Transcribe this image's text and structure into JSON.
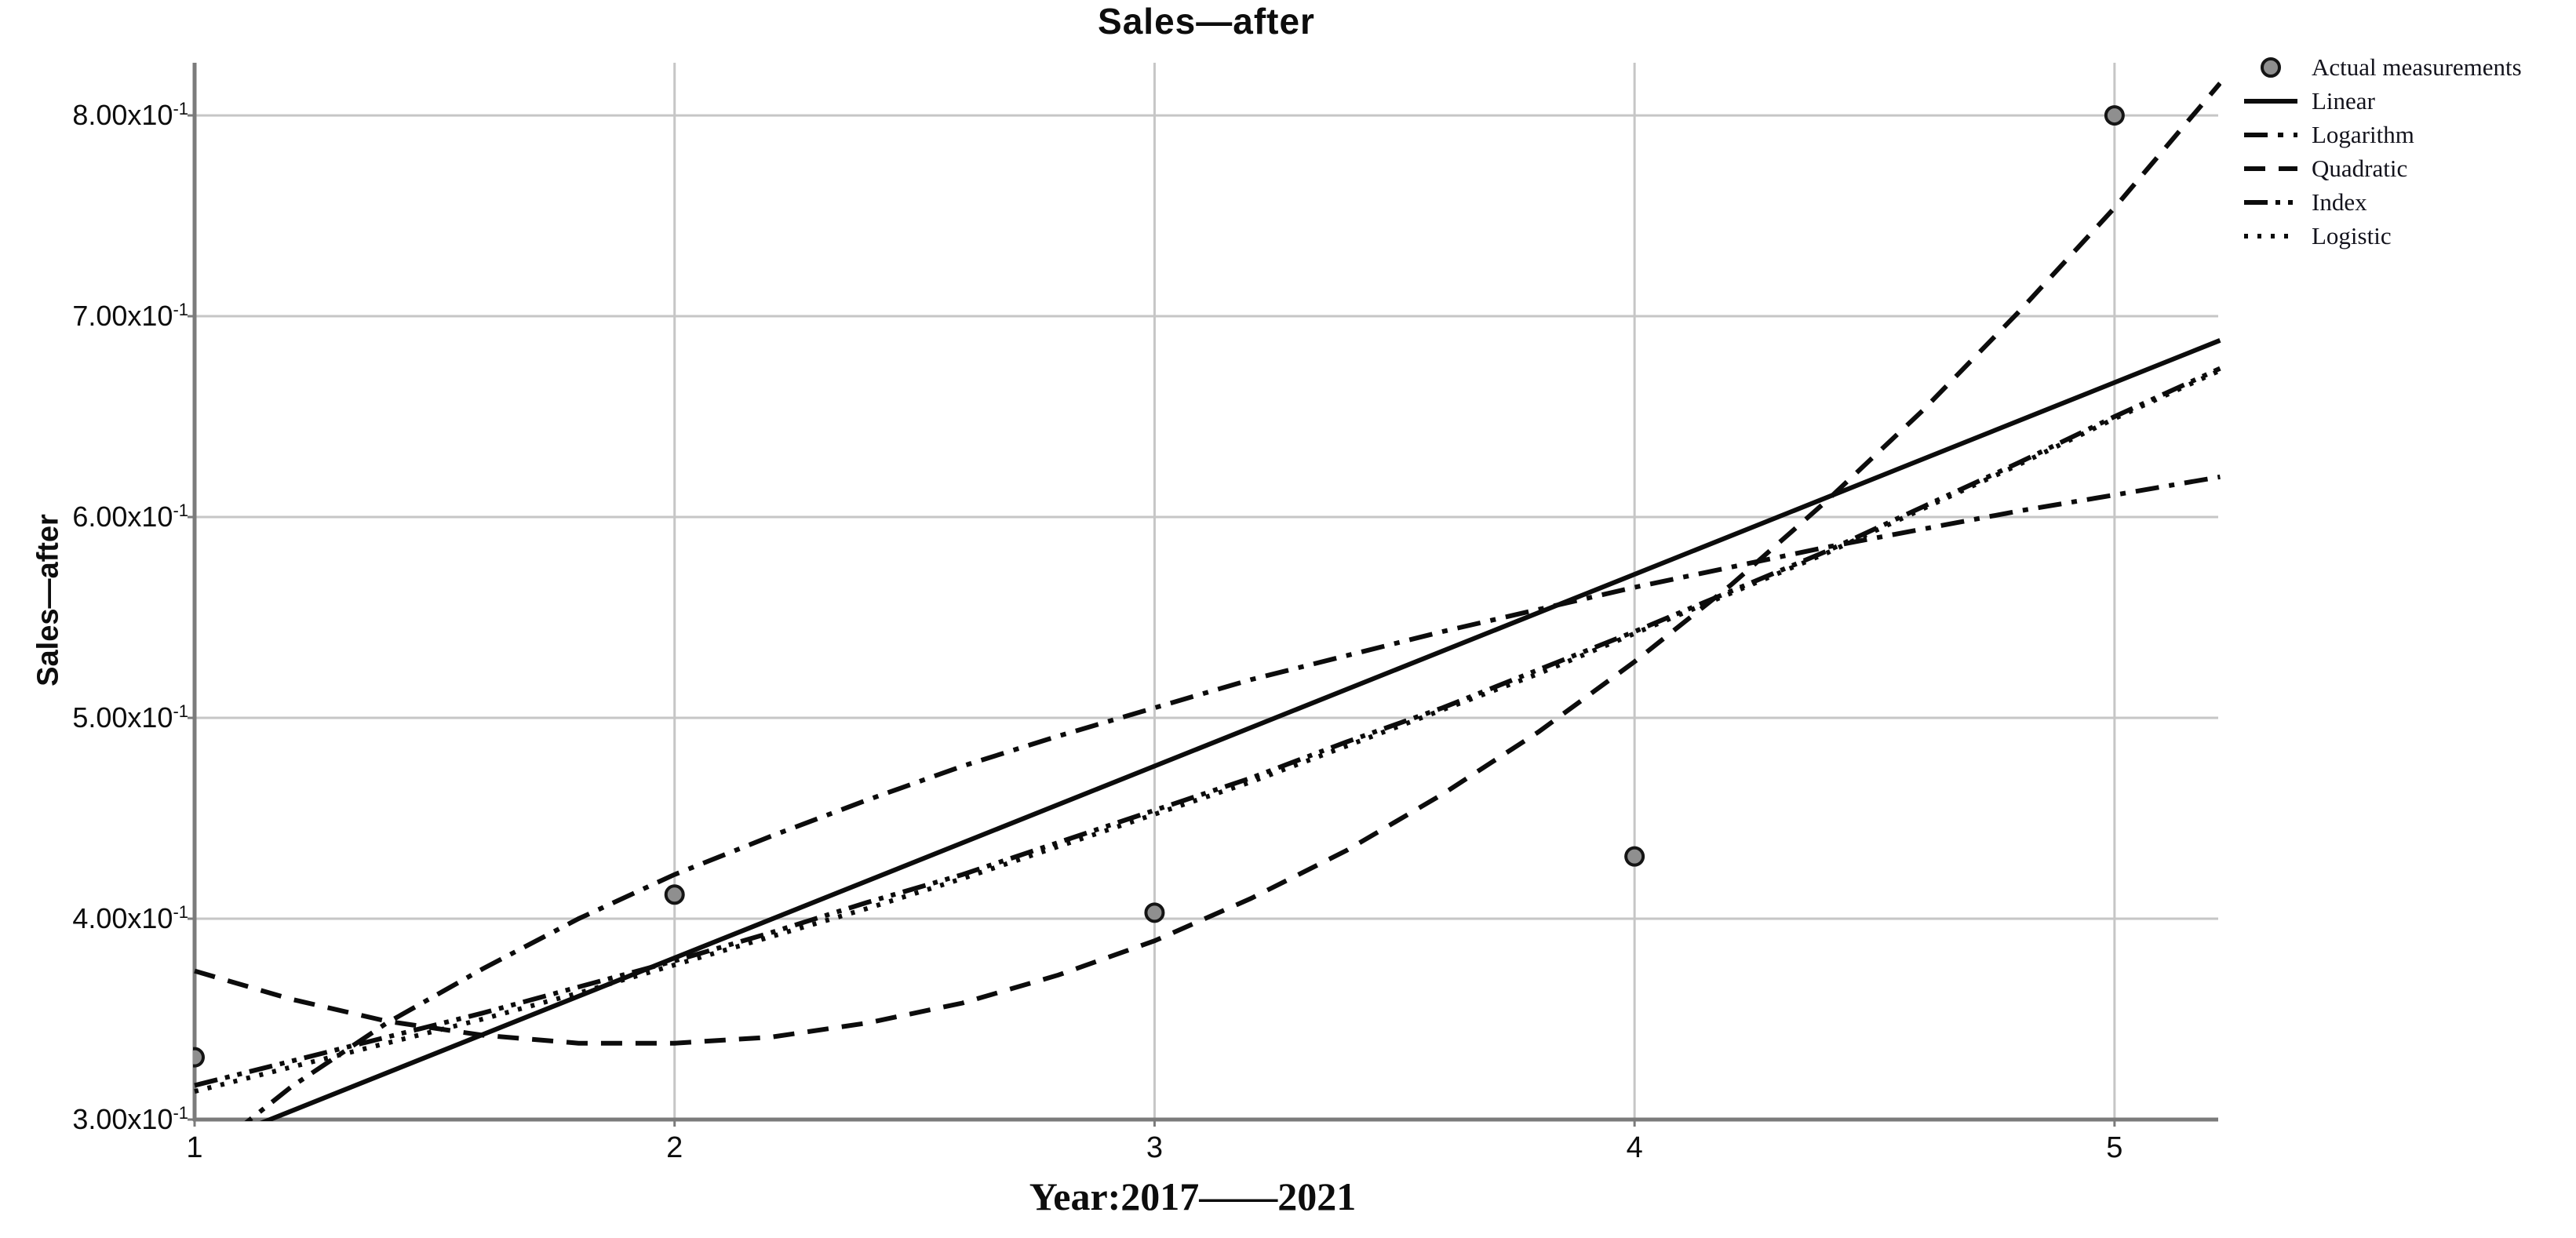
{
  "title": "Sales—after",
  "axes": {
    "y_title": "Sales—after",
    "x_title": "Year:2017——2021",
    "y_ticks": [
      {
        "value": 0.3,
        "mant": "3.00x10",
        "exp": "-1"
      },
      {
        "value": 0.4,
        "mant": "4.00x10",
        "exp": "-1"
      },
      {
        "value": 0.5,
        "mant": "5.00x10",
        "exp": "-1"
      },
      {
        "value": 0.6,
        "mant": "6.00x10",
        "exp": "-1"
      },
      {
        "value": 0.7,
        "mant": "7.00x10",
        "exp": "-1"
      },
      {
        "value": 0.8,
        "mant": "8.00x10",
        "exp": "-1"
      }
    ],
    "x_ticks": [
      {
        "value": 1,
        "label": "1"
      },
      {
        "value": 2,
        "label": "2"
      },
      {
        "value": 3,
        "label": "3"
      },
      {
        "value": 4,
        "label": "4"
      },
      {
        "value": 5,
        "label": "5"
      }
    ]
  },
  "colors": {
    "line": "#0c0c0c",
    "grid": "#c6c6c6",
    "frame": "#7b7b7b",
    "point_fill": "#8f8f8f",
    "point_stroke": "#151515"
  },
  "legend": {
    "items": [
      {
        "label": "Actual measurements",
        "pattern": "point"
      },
      {
        "label": "Linear",
        "pattern": "solid"
      },
      {
        "label": "Logarithm",
        "pattern": "dash-dot"
      },
      {
        "label": "Quadratic",
        "pattern": "dash"
      },
      {
        "label": "Index",
        "pattern": "dash-dot-dot"
      },
      {
        "label": "Logistic",
        "pattern": "dot"
      }
    ]
  },
  "chart_data": {
    "type": "scatter",
    "title": "Sales—after",
    "xlabel": "Year:2017——2021",
    "ylabel": "Sales—after",
    "xlim": [
      1,
      5.216
    ],
    "ylim": [
      0.3,
      0.8262
    ],
    "grid": true,
    "legend_position": "top-right-outside",
    "x_tick_values": [
      1,
      2,
      3,
      4,
      5
    ],
    "y_tick_values": [
      0.3,
      0.4,
      0.5,
      0.6,
      0.7,
      0.8
    ],
    "actual_measurements": {
      "name": "Actual measurements",
      "points": [
        [
          1,
          0.331
        ],
        [
          2,
          0.412
        ],
        [
          3,
          0.403
        ],
        [
          4,
          0.431
        ],
        [
          5,
          0.8
        ]
      ]
    },
    "series": [
      {
        "name": "Linear",
        "pattern": "solid",
        "points": [
          [
            1,
            0.285
          ],
          [
            5.22,
            0.688
          ]
        ]
      },
      {
        "name": "Logarithm",
        "pattern": "dash-dot",
        "points": [
          [
            1,
            0.278
          ],
          [
            1.2,
            0.316
          ],
          [
            1.4,
            0.348
          ],
          [
            1.6,
            0.375
          ],
          [
            1.8,
            0.4
          ],
          [
            2,
            0.422
          ],
          [
            2.2,
            0.441
          ],
          [
            2.4,
            0.459
          ],
          [
            2.6,
            0.476
          ],
          [
            2.8,
            0.491
          ],
          [
            3,
            0.505
          ],
          [
            3.2,
            0.519
          ],
          [
            3.4,
            0.531
          ],
          [
            3.6,
            0.543
          ],
          [
            3.8,
            0.554
          ],
          [
            4,
            0.565
          ],
          [
            4.2,
            0.575
          ],
          [
            4.4,
            0.585
          ],
          [
            4.6,
            0.594
          ],
          [
            4.8,
            0.603
          ],
          [
            5,
            0.611
          ],
          [
            5.22,
            0.62
          ]
        ]
      },
      {
        "name": "Quadratic",
        "pattern": "dash",
        "points": [
          [
            1,
            0.374
          ],
          [
            1.2,
            0.36
          ],
          [
            1.4,
            0.349
          ],
          [
            1.6,
            0.342
          ],
          [
            1.8,
            0.338
          ],
          [
            2,
            0.338
          ],
          [
            2.2,
            0.341
          ],
          [
            2.4,
            0.348
          ],
          [
            2.6,
            0.358
          ],
          [
            2.8,
            0.372
          ],
          [
            3,
            0.389
          ],
          [
            3.2,
            0.41
          ],
          [
            3.4,
            0.434
          ],
          [
            3.6,
            0.462
          ],
          [
            3.8,
            0.493
          ],
          [
            4,
            0.528
          ],
          [
            4.2,
            0.566
          ],
          [
            4.4,
            0.608
          ],
          [
            4.6,
            0.653
          ],
          [
            4.8,
            0.702
          ],
          [
            5,
            0.754
          ],
          [
            5.22,
            0.816
          ]
        ]
      },
      {
        "name": "Index",
        "pattern": "dash-dot-dot",
        "points": [
          [
            1,
            0.317
          ],
          [
            1.2,
            0.329
          ],
          [
            1.4,
            0.341
          ],
          [
            1.6,
            0.353
          ],
          [
            1.8,
            0.366
          ],
          [
            2,
            0.379
          ],
          [
            2.2,
            0.393
          ],
          [
            2.4,
            0.408
          ],
          [
            2.6,
            0.422
          ],
          [
            2.8,
            0.438
          ],
          [
            3,
            0.454
          ],
          [
            3.2,
            0.47
          ],
          [
            3.4,
            0.488
          ],
          [
            3.6,
            0.505
          ],
          [
            3.8,
            0.524
          ],
          [
            4,
            0.543
          ],
          [
            4.2,
            0.563
          ],
          [
            4.4,
            0.583
          ],
          [
            4.6,
            0.605
          ],
          [
            4.8,
            0.627
          ],
          [
            5,
            0.65
          ],
          [
            5.22,
            0.674
          ]
        ]
      },
      {
        "name": "Logistic",
        "pattern": "dot",
        "points": [
          [
            1,
            0.314
          ],
          [
            1.2,
            0.326
          ],
          [
            1.4,
            0.338
          ],
          [
            1.6,
            0.35
          ],
          [
            1.8,
            0.363
          ],
          [
            2,
            0.377
          ],
          [
            2.2,
            0.391
          ],
          [
            2.4,
            0.405
          ],
          [
            2.6,
            0.42
          ],
          [
            2.8,
            0.436
          ],
          [
            3,
            0.452
          ],
          [
            3.2,
            0.468
          ],
          [
            3.4,
            0.486
          ],
          [
            3.6,
            0.504
          ],
          [
            3.8,
            0.522
          ],
          [
            4,
            0.542
          ],
          [
            4.2,
            0.562
          ],
          [
            4.4,
            0.582
          ],
          [
            4.6,
            0.604
          ],
          [
            4.8,
            0.626
          ],
          [
            5,
            0.649
          ],
          [
            5.22,
            0.673
          ]
        ]
      }
    ]
  }
}
